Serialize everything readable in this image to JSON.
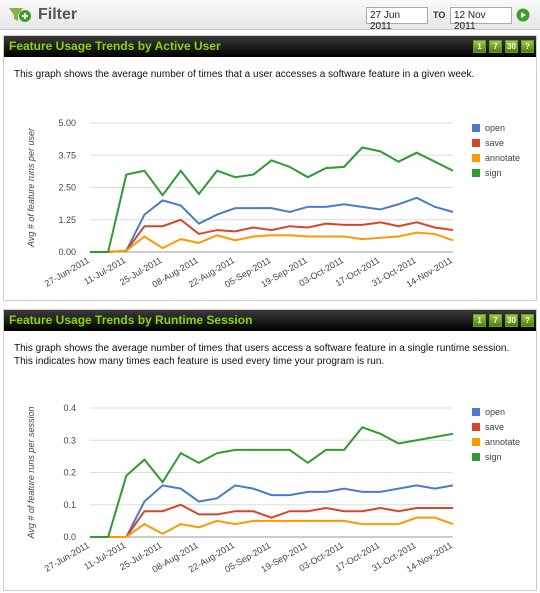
{
  "filter": {
    "title": "Filter",
    "from": "27 Jun 2011",
    "to_label": "TO",
    "to": "12 Nov 2011"
  },
  "panels": [
    {
      "title": "Feature Usage Trends by Active User",
      "description": "This graph shows the average number of times that a user accesses a software feature in a given week.",
      "buttons": [
        "1",
        "7",
        "30",
        "?"
      ]
    },
    {
      "title": "Feature Usage Trends by Runtime Session",
      "description": "This graph shows the average number of times that users access a software feature in a single runtime session. This indicates how many times each feature is used every time your program is run.",
      "buttons": [
        "1",
        "7",
        "30",
        "?"
      ]
    }
  ],
  "chart_data": [
    {
      "type": "line",
      "y_label": "Avg # of feature runs per user",
      "categories": [
        "27-Jun-2011",
        null,
        "11-Jul-2011",
        null,
        "25-Jul-2011",
        null,
        "08-Aug-2011",
        null,
        "22-Aug-2011",
        null,
        "05-Sep-2011",
        null,
        "19-Sep-2011",
        null,
        "03-Oct-2011",
        null,
        "17-Oct-2011",
        null,
        "31-Oct-2011",
        null,
        "14-Nov-2011"
      ],
      "ylim": [
        0,
        5
      ],
      "yticks": [
        {
          "value": 0,
          "label": "0.00"
        },
        {
          "value": 1.25,
          "label": "1.25"
        },
        {
          "value": 2.5,
          "label": "2.50"
        },
        {
          "value": 3.75,
          "label": "3.75"
        },
        {
          "value": 5,
          "label": "5.00"
        }
      ],
      "grid": true,
      "series": [
        {
          "name": "open",
          "color": "#4a7bd0",
          "values": [
            0,
            0,
            0.05,
            1.45,
            2.0,
            1.8,
            1.1,
            1.45,
            1.7,
            1.7,
            1.7,
            1.55,
            1.75,
            1.75,
            1.85,
            1.75,
            1.65,
            1.85,
            2.1,
            1.75,
            1.55
          ]
        },
        {
          "name": "save",
          "color": "#d9452b",
          "values": [
            0,
            0,
            0.05,
            1.0,
            1.0,
            1.25,
            0.7,
            0.85,
            0.8,
            0.95,
            0.85,
            1.0,
            0.95,
            1.1,
            1.05,
            1.05,
            1.15,
            1.0,
            1.15,
            0.95,
            0.85
          ]
        },
        {
          "name": "annotate",
          "color": "#ff9900",
          "values": [
            0,
            0,
            0.05,
            0.6,
            0.15,
            0.5,
            0.35,
            0.65,
            0.45,
            0.6,
            0.65,
            0.65,
            0.6,
            0.6,
            0.6,
            0.5,
            0.55,
            0.6,
            0.75,
            0.7,
            0.45
          ]
        },
        {
          "name": "sign",
          "color": "#2d9c32",
          "values": [
            0,
            0,
            3.0,
            3.15,
            2.2,
            3.15,
            2.25,
            3.15,
            2.9,
            3.0,
            3.55,
            3.3,
            2.9,
            3.25,
            3.3,
            4.05,
            3.9,
            3.5,
            3.85,
            3.5,
            3.15
          ]
        }
      ]
    },
    {
      "type": "line",
      "y_label": "Avg # of feature runs  per session",
      "categories": [
        "27-Jun-2011",
        null,
        "11-Jul-2011",
        null,
        "25-Jul-2011",
        null,
        "08-Aug-2011",
        null,
        "22-Aug-2011",
        null,
        "05-Sep-2011",
        null,
        "19-Sep-2011",
        null,
        "03-Oct-2011",
        null,
        "17-Oct-2011",
        null,
        "31-Oct-2011",
        null,
        "14-Nov-2011"
      ],
      "ylim": [
        0,
        0.4
      ],
      "yticks": [
        {
          "value": 0,
          "label": "0.0"
        },
        0.1,
        0.2,
        0.3,
        0.4
      ],
      "grid": true,
      "series": [
        {
          "name": "open",
          "color": "#4a7bd0",
          "values": [
            0,
            0,
            0,
            0.11,
            0.16,
            0.15,
            0.11,
            0.12,
            0.16,
            0.15,
            0.13,
            0.13,
            0.14,
            0.14,
            0.15,
            0.14,
            0.14,
            0.15,
            0.16,
            0.15,
            0.16
          ]
        },
        {
          "name": "save",
          "color": "#d9452b",
          "values": [
            0,
            0,
            0,
            0.08,
            0.08,
            0.1,
            0.07,
            0.07,
            0.08,
            0.08,
            0.06,
            0.08,
            0.08,
            0.09,
            0.08,
            0.08,
            0.09,
            0.08,
            0.09,
            0.09,
            0.09
          ]
        },
        {
          "name": "annotate",
          "color": "#ff9900",
          "values": [
            0,
            0,
            0,
            0.04,
            0.01,
            0.04,
            0.03,
            0.05,
            0.04,
            0.05,
            0.05,
            0.05,
            0.05,
            0.05,
            0.05,
            0.04,
            0.04,
            0.04,
            0.06,
            0.06,
            0.04
          ]
        },
        {
          "name": "sign",
          "color": "#2d9c32",
          "values": [
            0,
            0,
            0.19,
            0.24,
            0.17,
            0.26,
            0.23,
            0.26,
            0.27,
            0.27,
            0.27,
            0.27,
            0.23,
            0.27,
            0.27,
            0.34,
            0.32,
            0.29,
            0.3,
            0.31,
            0.32
          ]
        }
      ]
    }
  ]
}
